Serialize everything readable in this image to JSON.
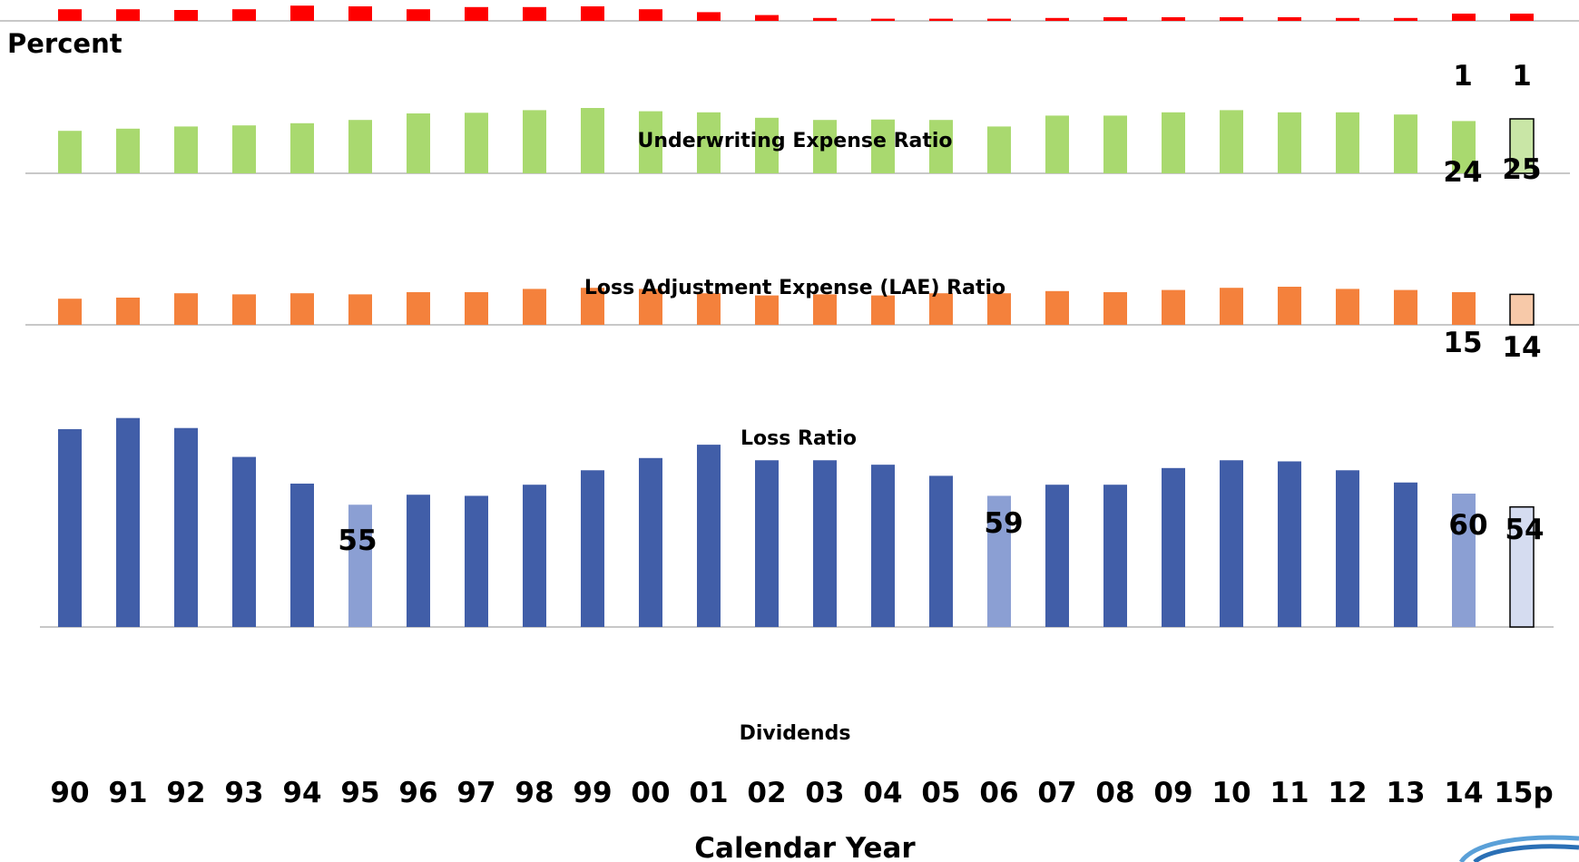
{
  "chart_data": {
    "type": "bar",
    "title": "",
    "ylabel": "Percent",
    "xlabel": "Calendar Year",
    "categories": [
      "90",
      "91",
      "92",
      "93",
      "94",
      "95",
      "96",
      "97",
      "98",
      "99",
      "00",
      "01",
      "02",
      "03",
      "04",
      "05",
      "06",
      "07",
      "08",
      "09",
      "10",
      "11",
      "12",
      "13",
      "14",
      "15p"
    ],
    "highlight_categories": [
      "95",
      "06",
      "14"
    ],
    "projected_category": "15p",
    "series": [
      {
        "name": "Dividends",
        "color": "#ff0000",
        "values": [
          1.6,
          1.6,
          1.5,
          1.6,
          2.1,
          2.0,
          1.6,
          1.9,
          1.9,
          2.0,
          1.6,
          1.2,
          0.8,
          0.4,
          0.3,
          0.3,
          0.3,
          0.4,
          0.5,
          0.5,
          0.5,
          0.5,
          0.4,
          0.4,
          1,
          1
        ],
        "labels": [
          {
            "category": "14",
            "text": "1"
          },
          {
            "category": "15p",
            "text": "1"
          }
        ]
      },
      {
        "name": "Underwriting Expense Ratio",
        "color": "#a9d96f",
        "projected_color": "#c9e6a6",
        "values": [
          19.5,
          20.5,
          21.5,
          22,
          23,
          24.5,
          27.5,
          27.8,
          29,
          30,
          28.5,
          28,
          25.5,
          24.5,
          24.7,
          24.5,
          21.5,
          26.5,
          26.5,
          28,
          29,
          28,
          28,
          27,
          24,
          25
        ],
        "labels": [
          {
            "category": "14",
            "text": "24"
          },
          {
            "category": "15p",
            "text": "25"
          }
        ]
      },
      {
        "name": "Loss Adjustment Expense (LAE) Ratio",
        "color": "#f4813c",
        "projected_color": "#f7c9a9",
        "values": [
          12,
          12.5,
          14.5,
          14,
          14.5,
          14,
          15,
          15,
          16.5,
          17,
          16.5,
          14.5,
          13.5,
          14,
          13.5,
          14.5,
          14.5,
          15.5,
          15,
          16,
          17,
          17.5,
          16.5,
          16,
          15,
          14
        ],
        "labels": [
          {
            "category": "14",
            "text": "15"
          },
          {
            "category": "15p",
            "text": "14"
          }
        ]
      },
      {
        "name": "Loss Ratio",
        "color": "#415ea8",
        "highlight_color": "#8b9fd3",
        "projected_color": "#d5dcf0",
        "values": [
          89,
          94,
          89.5,
          76.5,
          64.5,
          55,
          59.5,
          59,
          64,
          70.5,
          76,
          82,
          75,
          75,
          73,
          68,
          59,
          64,
          64,
          71.5,
          75,
          74.5,
          70.5,
          65,
          60,
          54
        ],
        "labels": [
          {
            "category": "95",
            "text": "55"
          },
          {
            "category": "06",
            "text": "59"
          },
          {
            "category": "14",
            "text": "60"
          },
          {
            "category": "15p",
            "text": "54"
          }
        ]
      }
    ]
  }
}
